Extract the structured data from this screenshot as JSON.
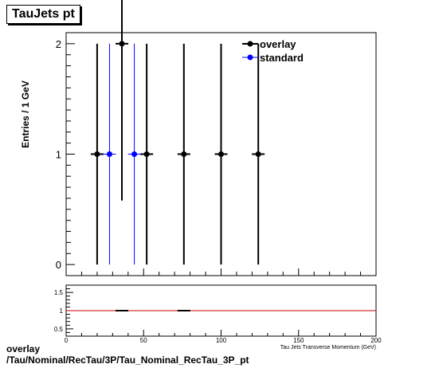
{
  "title": "TauJets pt",
  "footer": {
    "line1": "overlay",
    "line2": "/Tau/Nominal/RecTau/3P/Tau_Nominal_RecTau_3P_pt"
  },
  "colors": {
    "overlay": "#000000",
    "standard": "#0000ff",
    "ratio_line": "#cc0000"
  },
  "chart_data": [
    {
      "type": "scatter",
      "title": "TauJets pt",
      "xlabel": "Tau Jets Transverse Momentum (GeV)",
      "ylabel": "Entries / 1 GeV",
      "xlim": [
        0,
        200
      ],
      "ylim": [
        -0.1,
        2.1
      ],
      "y_ticks": [
        0,
        1,
        2
      ],
      "grid": false,
      "legend": "top-right",
      "series": [
        {
          "name": "overlay",
          "points": [
            {
              "x": 20,
              "y": 1,
              "yerr_low": 1,
              "yerr_high": 1
            },
            {
              "x": 36,
              "y": 2,
              "yerr_low": 1.42,
              "yerr_high": 1.42
            },
            {
              "x": 52,
              "y": 1,
              "yerr_low": 1,
              "yerr_high": 1
            },
            {
              "x": 76,
              "y": 1,
              "yerr_low": 1,
              "yerr_high": 1
            },
            {
              "x": 100,
              "y": 1,
              "yerr_low": 1,
              "yerr_high": 1
            },
            {
              "x": 124,
              "y": 1,
              "yerr_low": 1,
              "yerr_high": 1
            }
          ]
        },
        {
          "name": "standard",
          "points": [
            {
              "x": 28,
              "y": 1,
              "yerr_low": 1,
              "yerr_high": 1
            },
            {
              "x": 44,
              "y": 1,
              "yerr_low": 1,
              "yerr_high": 1
            }
          ]
        }
      ]
    },
    {
      "type": "scatter",
      "xlim": [
        0,
        200
      ],
      "ylim": [
        0.3,
        1.7
      ],
      "y_ticks": [
        0.5,
        1,
        1.5
      ],
      "x_ticks": [
        0,
        50,
        100,
        150,
        200
      ],
      "reference_line": 1,
      "series": [
        {
          "points": [
            {
              "x": 36,
              "y": 1,
              "yerr_low": 0,
              "yerr_high": 0
            },
            {
              "x": 76,
              "y": 1,
              "yerr_low": 0,
              "yerr_high": 0
            }
          ]
        }
      ]
    }
  ]
}
